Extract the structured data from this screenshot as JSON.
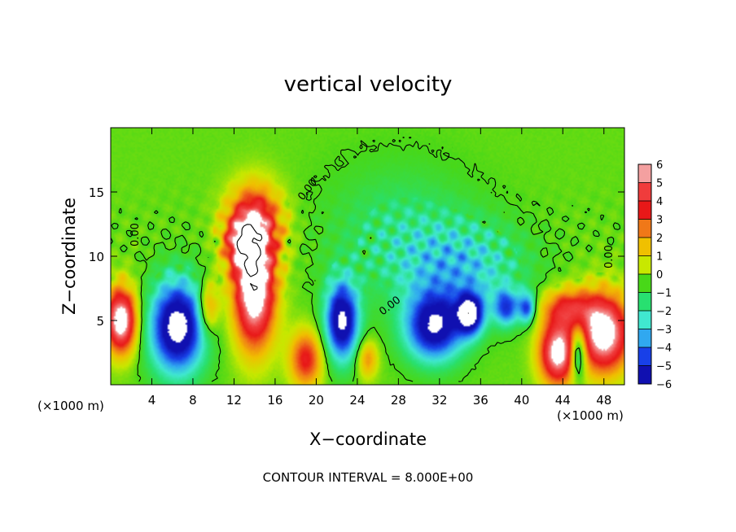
{
  "chart_data": {
    "type": "heatmap",
    "title": "vertical velocity",
    "xlabel": "X−coordinate",
    "ylabel": "Z−coordinate",
    "x_unit_left": "(×1000 m)",
    "x_unit_right": "(×1000 m)",
    "xlim": [
      0,
      50
    ],
    "ylim": [
      0,
      20
    ],
    "x_ticks": [
      4,
      8,
      12,
      16,
      20,
      24,
      28,
      32,
      36,
      40,
      44,
      48
    ],
    "x_tick_labels": [
      "4",
      "8",
      "12",
      "16",
      "20",
      "24",
      "28",
      "32",
      "36",
      "40",
      "44",
      "48"
    ],
    "y_ticks": [
      5,
      10,
      15
    ],
    "y_tick_labels": [
      "5",
      "10",
      "15"
    ],
    "colorbar": {
      "levels": [
        6,
        5,
        4,
        3,
        2,
        1,
        0,
        -1,
        -2,
        -3,
        -4,
        -5,
        -6
      ],
      "labels": [
        "6",
        "5",
        "4",
        "3",
        "2",
        "1",
        "0",
        "−1",
        "−2",
        "−3",
        "−4",
        "−5",
        "−6"
      ],
      "colors": [
        "#f4a0a0",
        "#f03c3c",
        "#e81818",
        "#f07818",
        "#f0c000",
        "#c8e800",
        "#48d818",
        "#28e070",
        "#40e8d0",
        "#30a8f0",
        "#1840e8",
        "#1010b0",
        "#8018c0"
      ],
      "over_color": "#ffffff"
    },
    "contour_labels": [
      "0.00",
      "0.00",
      "0.00",
      "0.00",
      "0.00"
    ],
    "footer": "CONTOUR INTERVAL = 8.000E+00",
    "features": [
      {
        "kind": "updraft",
        "x": 14,
        "z": 7.5,
        "strength": 7.5,
        "sx": 2.0,
        "sz": 4.5
      },
      {
        "kind": "updraft",
        "x": 14,
        "z": 12.5,
        "strength": 4.5,
        "sx": 2.6,
        "sz": 3.0
      },
      {
        "kind": "updraft",
        "x": 12.5,
        "z": 11.0,
        "strength": 3.0,
        "sx": 1.5,
        "sz": 2.0
      },
      {
        "kind": "updraft",
        "x": 1.0,
        "z": 5.0,
        "strength": 7.0,
        "sx": 1.5,
        "sz": 2.5
      },
      {
        "kind": "updraft",
        "x": 48,
        "z": 4.0,
        "strength": 7.0,
        "sx": 2.5,
        "sz": 3.0
      },
      {
        "kind": "updraft",
        "x": 43.5,
        "z": 2.5,
        "strength": 6.5,
        "sx": 1.8,
        "sz": 2.5
      },
      {
        "kind": "updraft",
        "x": 44.5,
        "z": 6.0,
        "strength": 3.5,
        "sx": 2.5,
        "sz": 1.5
      },
      {
        "kind": "updraft",
        "x": 19,
        "z": 2.0,
        "strength": 4.0,
        "sx": 1.6,
        "sz": 2.2
      },
      {
        "kind": "updraft",
        "x": 9.5,
        "z": 6.0,
        "strength": 3.0,
        "sx": 1.0,
        "sz": 2.0
      },
      {
        "kind": "updraft",
        "x": 25,
        "z": 2.0,
        "strength": 2.5,
        "sx": 1.0,
        "sz": 1.5
      },
      {
        "kind": "downdraft",
        "x": 6.5,
        "z": 4.5,
        "strength": -7.0,
        "sx": 2.6,
        "sz": 3.5
      },
      {
        "kind": "downdraft",
        "x": 22.5,
        "z": 5.0,
        "strength": -6.5,
        "sx": 1.6,
        "sz": 3.0
      },
      {
        "kind": "downdraft",
        "x": 31.5,
        "z": 4.5,
        "strength": -6.0,
        "sx": 2.8,
        "sz": 2.6
      },
      {
        "kind": "downdraft",
        "x": 35.0,
        "z": 5.5,
        "strength": -6.0,
        "sx": 1.3,
        "sz": 1.6
      },
      {
        "kind": "downdraft",
        "x": 38.5,
        "z": 6.0,
        "strength": -4.0,
        "sx": 1.2,
        "sz": 1.4
      },
      {
        "kind": "downdraft",
        "x": 40.5,
        "z": 6.0,
        "strength": -4.0,
        "sx": 0.8,
        "sz": 1.2
      },
      {
        "kind": "downdraft",
        "x": 45.5,
        "z": 2.5,
        "strength": -4.5,
        "sx": 0.8,
        "sz": 2.0
      },
      {
        "kind": "downdraft",
        "x": 34,
        "z": 9.0,
        "strength": -2.5,
        "sx": 6.0,
        "sz": 3.5
      },
      {
        "kind": "downdraft",
        "x": 28,
        "z": 12.0,
        "strength": -1.2,
        "sx": 7.0,
        "sz": 5.0
      }
    ]
  }
}
